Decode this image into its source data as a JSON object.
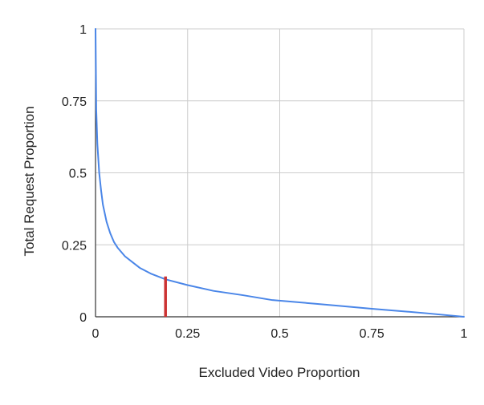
{
  "chart_data": {
    "type": "line",
    "title": "",
    "xlabel": "Excluded Video Proportion",
    "ylabel": "Total Request Proportion",
    "xlim": [
      0,
      1
    ],
    "ylim": [
      0,
      1
    ],
    "x_ticks": [
      0,
      0.25,
      0.5,
      0.75,
      1
    ],
    "y_ticks": [
      0,
      0.25,
      0.5,
      0.75,
      1
    ],
    "x_tick_labels": [
      "0",
      "0.25",
      "0.5",
      "0.75",
      "1"
    ],
    "y_tick_labels": [
      "0",
      "0.25",
      "0.5",
      "0.75",
      "1"
    ],
    "grid": true,
    "legend": "none",
    "series": [
      {
        "color": "#4a86e8",
        "x": [
          0,
          0.002,
          0.005,
          0.01,
          0.015,
          0.02,
          0.03,
          0.04,
          0.05,
          0.06,
          0.08,
          0.1,
          0.12,
          0.15,
          0.19,
          0.25,
          0.32,
          0.4,
          0.48,
          0.6,
          0.75,
          0.9,
          1.0
        ],
        "y": [
          1.0,
          0.72,
          0.6,
          0.5,
          0.44,
          0.39,
          0.33,
          0.29,
          0.26,
          0.24,
          0.21,
          0.19,
          0.17,
          0.15,
          0.13,
          0.11,
          0.09,
          0.075,
          0.058,
          0.045,
          0.028,
          0.012,
          0.0
        ]
      }
    ],
    "marker": {
      "x": 0.19,
      "y": 0.14,
      "color": "#cc3333"
    }
  }
}
